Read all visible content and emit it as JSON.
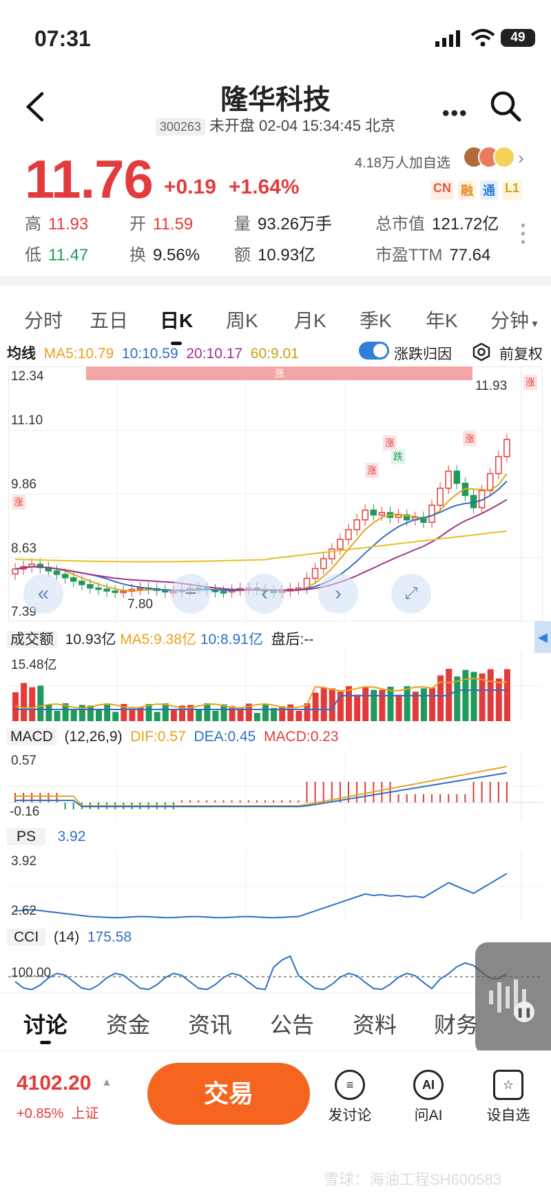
{
  "status": {
    "time": "07:31",
    "battery": "49"
  },
  "nav": {
    "title": "隆华科技",
    "code": "300263",
    "subtitle": "未开盘 02-04 15:34:45 北京"
  },
  "quote": {
    "price": "11.76",
    "change": "+0.19",
    "change_pct": "+1.64%",
    "followers": "4.18万人加自选",
    "badges": [
      "CN",
      "融",
      "通",
      "L1"
    ],
    "stats": [
      {
        "label": "高",
        "value": "11.93",
        "color": "red"
      },
      {
        "label": "开",
        "value": "11.59",
        "color": "red"
      },
      {
        "label": "量",
        "value": "93.26万手",
        "color": "dark"
      },
      {
        "label": "总市值",
        "value": "121.72亿",
        "color": "dark"
      },
      {
        "label": "低",
        "value": "11.47",
        "color": "green"
      },
      {
        "label": "换",
        "value": "9.56%",
        "color": "dark"
      },
      {
        "label": "额",
        "value": "10.93亿",
        "color": "dark"
      },
      {
        "label": "市盈TTM",
        "value": "77.64",
        "color": "dark"
      }
    ]
  },
  "tabs": [
    "分时",
    "五日",
    "日K",
    "周K",
    "月K",
    "季K",
    "年K",
    "分钟"
  ],
  "active_tab": "日K",
  "ma_row": {
    "label": "均线",
    "ma5": "MA5:10.79",
    "ma10": "10:10.59",
    "ma20": "20:10.17",
    "ma60": "60:9.01",
    "toggle_label": "涨跌归因",
    "adjust_label": "前复权"
  },
  "kline": {
    "y_labels": [
      "12.34",
      "11.10",
      "9.86",
      "8.63",
      "7.39"
    ],
    "high_marker": "11.93",
    "low_marker": "7.80",
    "zone_label": "涨",
    "tag_up": "涨",
    "tag_down": "跌"
  },
  "volume": {
    "label": "成交额",
    "value": "10.93亿",
    "ma5": "MA5:9.38亿",
    "ma10": "10:8.91亿",
    "after": "盘后:--",
    "max": "15.48亿"
  },
  "macd": {
    "label": "MACD",
    "params": "(12,26,9)",
    "dif": "DIF:0.57",
    "dea": "DEA:0.45",
    "macd": "MACD:0.23",
    "top": "0.57",
    "bottom": "-0.16"
  },
  "ps": {
    "label": "PS",
    "value": "3.92",
    "top": "3.92",
    "bottom": "2.62"
  },
  "cci": {
    "label": "CCI",
    "params": "(14)",
    "value": "175.58",
    "ref": "100.00"
  },
  "bottom_tabs": [
    "讨论",
    "资金",
    "资讯",
    "公告",
    "资料",
    "财务"
  ],
  "footer": {
    "index_value": "4102.20",
    "index_change": "+0.85%",
    "index_name": "上证",
    "trade": "交易",
    "actions": [
      {
        "label": "发讨论",
        "icon": "chat-icon"
      },
      {
        "label": "问AI",
        "icon": "ai-icon"
      },
      {
        "label": "设自选",
        "icon": "star-add-icon"
      }
    ]
  },
  "watermark": "雪球：海油工程SH600583",
  "colors": {
    "up": "#e33b3b",
    "down": "#1f9a5a",
    "ma5": "#e8a21d",
    "ma10": "#2f6fc2",
    "ma20": "#a0308a",
    "ma60": "#e6c020",
    "trade": "#f5651f"
  }
}
